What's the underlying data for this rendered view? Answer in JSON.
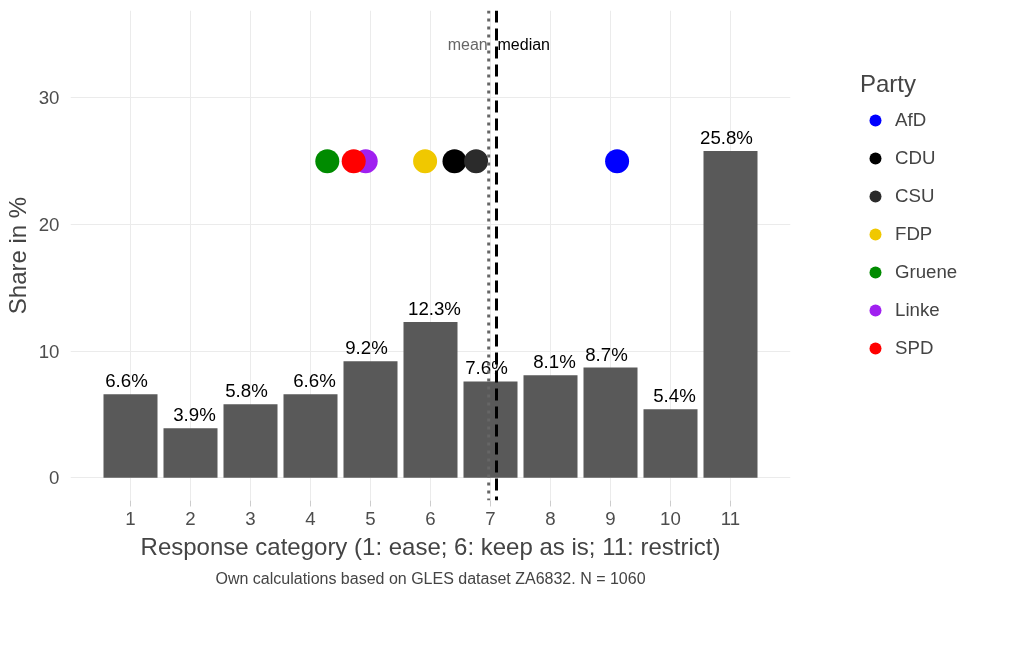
{
  "chart_data": {
    "type": "bar",
    "ylabel": "Share in %",
    "xlabel": "Response category (1: ease; 6: keep as is; 11: restrict)",
    "legend_title": "Party",
    "x": [
      1,
      2,
      3,
      4,
      5,
      6,
      7,
      8,
      9,
      10,
      11
    ],
    "color": "#595959",
    "values": [
      6.6,
      3.9,
      5.8,
      6.6,
      9.2,
      12.3,
      7.6,
      8.1,
      8.7,
      5.4,
      25.8
    ],
    "value_labels": [
      "6.6%",
      "3.9%",
      "5.8%",
      "6.6%",
      "9.2%",
      "12.3%",
      "7.6%",
      "8.1%",
      "8.7%",
      "5.4%",
      "25.8%"
    ],
    "series": [
      {
        "type": "scatter",
        "name": "AfD",
        "color": "#0000ff",
        "x": [
          9.11
        ],
        "values": [
          25
        ]
      },
      {
        "type": "scatter",
        "name": "CDU",
        "color": "#000000",
        "x": [
          6.4
        ],
        "values": [
          25
        ]
      },
      {
        "type": "scatter",
        "name": "CSU",
        "color": "#2b2b2b",
        "x": [
          6.76
        ],
        "values": [
          25
        ]
      },
      {
        "type": "scatter",
        "name": "FDP",
        "color": "#f0c800",
        "x": [
          5.91
        ],
        "values": [
          25
        ]
      },
      {
        "type": "scatter",
        "name": "Gruene",
        "color": "#008b00",
        "x": [
          4.28
        ],
        "values": [
          25
        ]
      },
      {
        "type": "scatter",
        "name": "Linke",
        "color": "#a020f0",
        "x": [
          4.92
        ],
        "values": [
          25
        ]
      },
      {
        "type": "scatter",
        "name": "SPD",
        "color": "#ff0000",
        "x": [
          4.72
        ],
        "values": [
          25
        ]
      }
    ],
    "marker": "circle",
    "ref_lines": [
      {
        "axis": "x",
        "value": 6.97,
        "label": "mean",
        "color": "#666666",
        "line_style": "dotted"
      },
      {
        "axis": "x",
        "value": 7.1,
        "label": "median",
        "color": "#000000",
        "line_style": "dashed"
      }
    ],
    "xlim": [
      0,
      12
    ],
    "xticks": [
      1,
      2,
      3,
      4,
      5,
      6,
      7,
      8,
      9,
      10,
      11
    ],
    "ylim": [
      -1.8,
      36.9
    ],
    "yticks": [
      0,
      10,
      20,
      30
    ],
    "grid": true,
    "legend": "right",
    "annotations": [
      "Own calculations based on GLES dataset ZA6832. N = 1060"
    ]
  }
}
